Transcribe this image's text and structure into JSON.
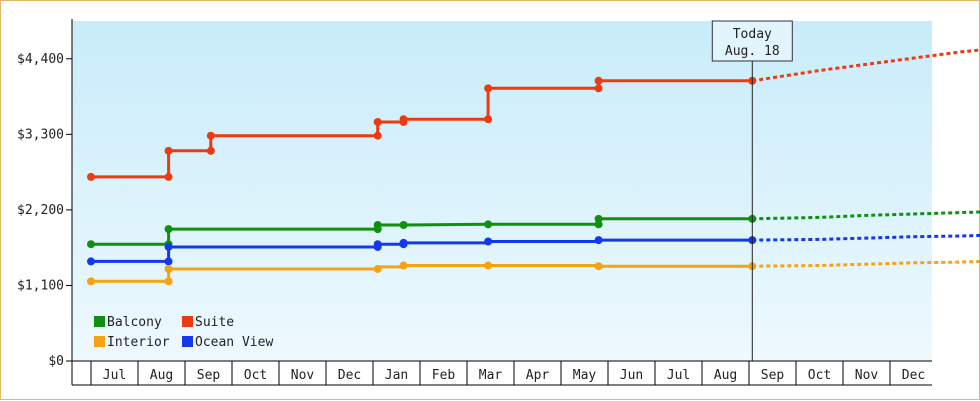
{
  "chart_data": {
    "type": "line",
    "title": "",
    "xlabel": "",
    "ylabel": "",
    "ylim": [
      0,
      4950
    ],
    "yticks": [
      0,
      1100,
      2200,
      3300,
      4400
    ],
    "ytick_labels": [
      "$0",
      "$1,100",
      "$2,200",
      "$3,300",
      "$4,400"
    ],
    "xtick_labels": [
      "Jul",
      "Aug",
      "Sep",
      "Oct",
      "Nov",
      "Dec",
      "Jan",
      "Feb",
      "Mar",
      "Apr",
      "May",
      "Jun",
      "Jul",
      "Aug",
      "Sep",
      "Oct",
      "Nov",
      "Dec"
    ],
    "x_start_month_index": -0.5,
    "grid": false,
    "legend_position": "bottom-left",
    "today_label": "Today",
    "today_date": "Aug. 18",
    "today_x": 13.57,
    "colors": {
      "Balcony": "#109010",
      "Suite": "#ee3a10",
      "Interior": "#f5a214",
      "Ocean View": "#1438ee"
    },
    "legend_order": [
      "Balcony",
      "Suite",
      "Interior",
      "Ocean View"
    ],
    "series": [
      {
        "name": "Suite",
        "steps": [
          [
            -0.5,
            2680
          ],
          [
            1.15,
            2680
          ],
          [
            1.15,
            3060
          ],
          [
            2.05,
            3060
          ],
          [
            2.05,
            3280
          ],
          [
            5.6,
            3280
          ],
          [
            5.6,
            3480
          ],
          [
            6.15,
            3480
          ],
          [
            6.15,
            3520
          ],
          [
            7.95,
            3520
          ],
          [
            7.95,
            3970
          ],
          [
            10.3,
            3970
          ],
          [
            10.3,
            4080
          ],
          [
            13.57,
            4080
          ]
        ],
        "markers": [
          [
            -0.5,
            2680
          ],
          [
            1.15,
            2680
          ],
          [
            1.15,
            3060
          ],
          [
            2.05,
            3060
          ],
          [
            2.05,
            3280
          ],
          [
            5.6,
            3280
          ],
          [
            5.6,
            3480
          ],
          [
            6.15,
            3480
          ],
          [
            6.15,
            3520
          ],
          [
            7.95,
            3520
          ],
          [
            7.95,
            3970
          ],
          [
            10.3,
            3970
          ],
          [
            10.3,
            4080
          ],
          [
            13.57,
            4080
          ]
        ],
        "forecast": [
          [
            13.57,
            4080
          ],
          [
            15,
            4230
          ],
          [
            16,
            4320
          ],
          [
            17,
            4410
          ],
          [
            18,
            4500
          ],
          [
            18.9,
            4560
          ]
        ]
      },
      {
        "name": "Balcony",
        "steps": [
          [
            -0.5,
            1700
          ],
          [
            1.15,
            1700
          ],
          [
            1.15,
            1920
          ],
          [
            5.6,
            1920
          ],
          [
            5.6,
            1980
          ],
          [
            6.15,
            1980
          ],
          [
            7.95,
            1990
          ],
          [
            10.3,
            1990
          ],
          [
            10.3,
            2070
          ],
          [
            13.57,
            2070
          ]
        ],
        "markers": [
          [
            -0.5,
            1700
          ],
          [
            1.15,
            1700
          ],
          [
            1.15,
            1920
          ],
          [
            5.6,
            1920
          ],
          [
            5.6,
            1980
          ],
          [
            6.15,
            1980
          ],
          [
            7.95,
            1990
          ],
          [
            10.3,
            1990
          ],
          [
            10.3,
            2070
          ],
          [
            13.57,
            2070
          ]
        ],
        "forecast": [
          [
            13.57,
            2070
          ],
          [
            15,
            2090
          ],
          [
            16,
            2120
          ],
          [
            17,
            2140
          ],
          [
            18,
            2160
          ],
          [
            18.9,
            2180
          ]
        ]
      },
      {
        "name": "Ocean View",
        "steps": [
          [
            -0.5,
            1450
          ],
          [
            1.15,
            1450
          ],
          [
            1.15,
            1660
          ],
          [
            5.6,
            1660
          ],
          [
            5.6,
            1700
          ],
          [
            6.15,
            1700
          ],
          [
            6.15,
            1720
          ],
          [
            7.95,
            1720
          ],
          [
            7.95,
            1740
          ],
          [
            10.3,
            1740
          ],
          [
            10.3,
            1760
          ],
          [
            13.57,
            1760
          ]
        ],
        "markers": [
          [
            -0.5,
            1450
          ],
          [
            1.15,
            1450
          ],
          [
            1.15,
            1660
          ],
          [
            5.6,
            1660
          ],
          [
            5.6,
            1700
          ],
          [
            6.15,
            1700
          ],
          [
            6.15,
            1720
          ],
          [
            7.95,
            1740
          ],
          [
            10.3,
            1760
          ],
          [
            13.57,
            1760
          ]
        ],
        "forecast": [
          [
            13.57,
            1760
          ],
          [
            15,
            1770
          ],
          [
            16,
            1790
          ],
          [
            17,
            1810
          ],
          [
            18,
            1820
          ],
          [
            18.9,
            1840
          ]
        ]
      },
      {
        "name": "Interior",
        "steps": [
          [
            -0.5,
            1160
          ],
          [
            1.15,
            1160
          ],
          [
            1.15,
            1340
          ],
          [
            5.6,
            1340
          ],
          [
            5.6,
            1370
          ],
          [
            6.15,
            1370
          ],
          [
            6.15,
            1390
          ],
          [
            7.95,
            1390
          ],
          [
            10.3,
            1390
          ],
          [
            10.3,
            1380
          ],
          [
            13.57,
            1380
          ]
        ],
        "markers": [
          [
            -0.5,
            1160
          ],
          [
            1.15,
            1160
          ],
          [
            1.15,
            1340
          ],
          [
            5.6,
            1340
          ],
          [
            6.15,
            1390
          ],
          [
            7.95,
            1390
          ],
          [
            10.3,
            1380
          ],
          [
            13.57,
            1380
          ]
        ],
        "forecast": [
          [
            13.57,
            1380
          ],
          [
            15,
            1390
          ],
          [
            16,
            1410
          ],
          [
            17,
            1430
          ],
          [
            18,
            1440
          ],
          [
            18.9,
            1460
          ]
        ]
      }
    ]
  }
}
